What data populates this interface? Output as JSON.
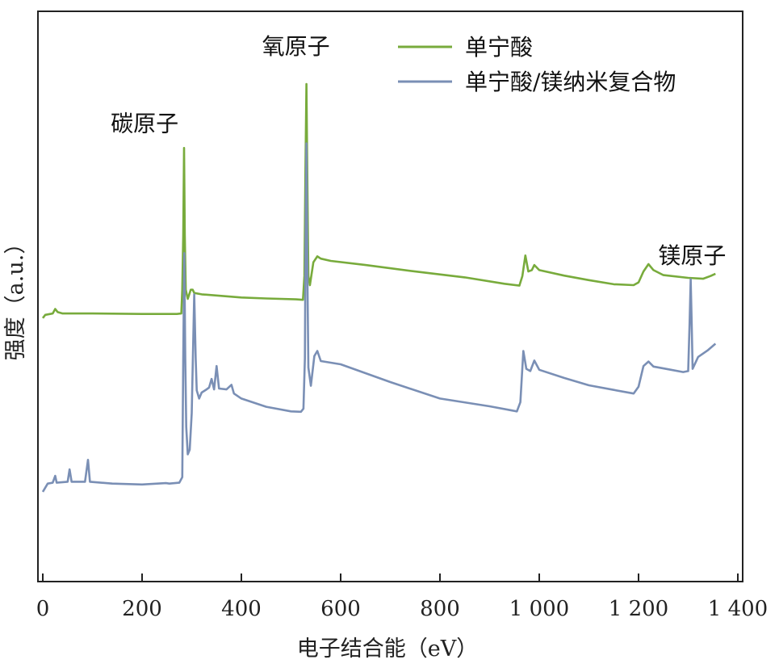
{
  "chart_data": {
    "type": "line",
    "xlabel": "电子结合能（eV）",
    "ylabel": "强度（a.u.）",
    "xlim": [
      0,
      1400
    ],
    "ylim": [
      0,
      100
    ],
    "xticks": [
      0,
      200,
      400,
      600,
      800,
      1000,
      1200,
      1400
    ],
    "xtick_labels": [
      "0",
      "200",
      "400",
      "600",
      "800",
      "1 000",
      "1 200",
      "1 400"
    ],
    "grid": false,
    "legend_position": "top-right",
    "colors": {
      "green": "#78ab3c",
      "blue": "#7a8fb5",
      "axis": "#222222"
    },
    "series": [
      {
        "name": "单宁酸",
        "color": "#78ab3c",
        "points": [
          [
            0,
            48.8
          ],
          [
            5,
            49.5
          ],
          [
            15,
            49.7
          ],
          [
            20,
            49.8
          ],
          [
            25,
            50.8
          ],
          [
            30,
            50.1
          ],
          [
            40,
            49.8
          ],
          [
            100,
            49.8
          ],
          [
            200,
            49.7
          ],
          [
            270,
            49.7
          ],
          [
            279,
            49.8
          ],
          [
            281,
            55
          ],
          [
            283,
            67
          ],
          [
            284.5,
            86
          ],
          [
            286,
            67
          ],
          [
            288,
            55
          ],
          [
            292,
            53
          ],
          [
            298,
            55
          ],
          [
            302,
            55
          ],
          [
            305,
            54.3
          ],
          [
            320,
            54.0
          ],
          [
            400,
            53.3
          ],
          [
            450,
            53.1
          ],
          [
            510,
            52.9
          ],
          [
            524,
            52.8
          ],
          [
            527,
            58
          ],
          [
            529,
            80
          ],
          [
            531,
            100
          ],
          [
            533,
            78
          ],
          [
            535,
            58
          ],
          [
            538,
            56
          ],
          [
            545,
            61
          ],
          [
            553,
            62.3
          ],
          [
            560,
            61.8
          ],
          [
            580,
            61.3
          ],
          [
            650,
            60.4
          ],
          [
            750,
            59.0
          ],
          [
            850,
            57.7
          ],
          [
            930,
            56.3
          ],
          [
            960,
            55.9
          ],
          [
            966,
            58
          ],
          [
            972,
            62.5
          ],
          [
            978,
            59
          ],
          [
            985,
            59.3
          ],
          [
            990,
            60.4
          ],
          [
            1000,
            59.3
          ],
          [
            1050,
            58.1
          ],
          [
            1100,
            57.1
          ],
          [
            1150,
            56.2
          ],
          [
            1190,
            56.0
          ],
          [
            1200,
            56.6
          ],
          [
            1210,
            59
          ],
          [
            1220,
            60.6
          ],
          [
            1230,
            59.3
          ],
          [
            1250,
            58.2
          ],
          [
            1300,
            57.6
          ],
          [
            1330,
            57.4
          ],
          [
            1345,
            58.0
          ],
          [
            1355,
            58.5
          ]
        ]
      },
      {
        "name": "单宁酸/镁纳米复合物",
        "color": "#7a8fb5",
        "points": [
          [
            0,
            10.8
          ],
          [
            10,
            12.6
          ],
          [
            20,
            12.8
          ],
          [
            25,
            14.3
          ],
          [
            28,
            12.8
          ],
          [
            50,
            13.0
          ],
          [
            54,
            15.7
          ],
          [
            58,
            13.0
          ],
          [
            85,
            13.0
          ],
          [
            91,
            17.8
          ],
          [
            95,
            13.0
          ],
          [
            140,
            12.6
          ],
          [
            200,
            12.4
          ],
          [
            248,
            12.7
          ],
          [
            255,
            12.6
          ],
          [
            275,
            12.8
          ],
          [
            281,
            14
          ],
          [
            283,
            40
          ],
          [
            285,
            63
          ],
          [
            287,
            40
          ],
          [
            289,
            25
          ],
          [
            292,
            19
          ],
          [
            296,
            20
          ],
          [
            300,
            28
          ],
          [
            305,
            54
          ],
          [
            308,
            40
          ],
          [
            310,
            33
          ],
          [
            315,
            31.2
          ],
          [
            320,
            32.5
          ],
          [
            330,
            33.2
          ],
          [
            335,
            33.6
          ],
          [
            340,
            35.5
          ],
          [
            345,
            33.2
          ],
          [
            350,
            38.3
          ],
          [
            355,
            33.4
          ],
          [
            370,
            33.2
          ],
          [
            380,
            34.2
          ],
          [
            385,
            32.3
          ],
          [
            400,
            31.2
          ],
          [
            450,
            29.4
          ],
          [
            500,
            28.4
          ],
          [
            520,
            28.3
          ],
          [
            525,
            29.0
          ],
          [
            528,
            40
          ],
          [
            529,
            60
          ],
          [
            531,
            87
          ],
          [
            533,
            58
          ],
          [
            535,
            38
          ],
          [
            540,
            34
          ],
          [
            547,
            40.5
          ],
          [
            553,
            41.6
          ],
          [
            560,
            39.4
          ],
          [
            600,
            38.7
          ],
          [
            700,
            34.8
          ],
          [
            800,
            31.2
          ],
          [
            900,
            29.5
          ],
          [
            955,
            28.4
          ],
          [
            962,
            30.4
          ],
          [
            968,
            41.6
          ],
          [
            974,
            37.7
          ],
          [
            982,
            37.2
          ],
          [
            990,
            39.5
          ],
          [
            1000,
            37.5
          ],
          [
            1050,
            35.7
          ],
          [
            1100,
            34.1
          ],
          [
            1150,
            33.1
          ],
          [
            1190,
            32.3
          ],
          [
            1200,
            33.8
          ],
          [
            1210,
            38.3
          ],
          [
            1220,
            39.3
          ],
          [
            1230,
            38.2
          ],
          [
            1260,
            37.6
          ],
          [
            1290,
            37.0
          ],
          [
            1300,
            37.2
          ],
          [
            1303,
            48
          ],
          [
            1305,
            57.3
          ],
          [
            1307,
            48
          ],
          [
            1309,
            37.7
          ],
          [
            1320,
            40.3
          ],
          [
            1340,
            41.8
          ],
          [
            1355,
            43.2
          ]
        ]
      }
    ],
    "annotations": [
      {
        "text": "氧原子",
        "x": 510,
        "y": 106.5
      },
      {
        "text": "碳原子",
        "x": 205,
        "y": 89.7
      },
      {
        "text": "镁原子",
        "x": 1308,
        "y": 60.8
      }
    ]
  }
}
